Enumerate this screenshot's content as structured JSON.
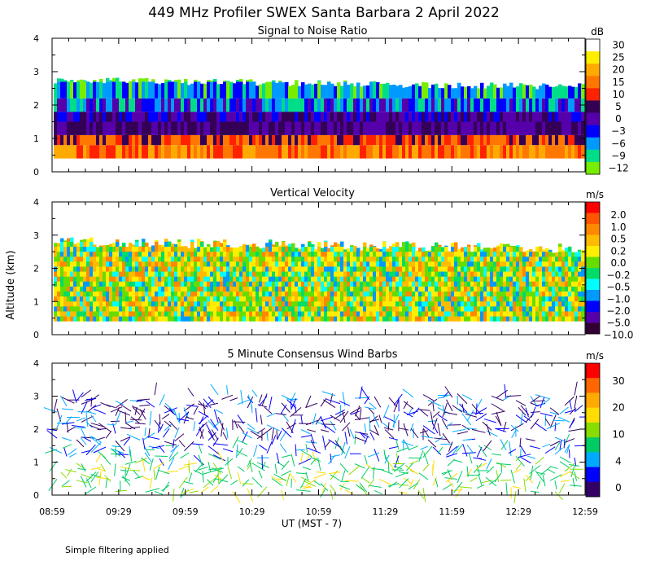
{
  "title": "449 MHz Profiler SWEX Santa Barbara  2 April 2022",
  "y_axis_label": "Altitude (km)",
  "x_axis_label": "UT  (MST - 7)",
  "footnote": "Simple filtering applied",
  "chart_data": [
    {
      "type": "heatmap",
      "title": "Signal to Noise Ratio",
      "ylim": [
        0,
        4
      ],
      "yticks": [
        "0",
        "1",
        "2",
        "3",
        "4"
      ],
      "xticks": [
        "08:59",
        "09:29",
        "09:59",
        "10:29",
        "10:59",
        "11:29",
        "11:59",
        "12:29",
        "12:59"
      ],
      "colorbar": {
        "unit": "dB",
        "levels": [
          "30",
          "25",
          "20",
          "15",
          "10",
          "5",
          "0",
          "−3",
          "−6",
          "−9",
          "−12"
        ],
        "colors": [
          "#ffffff",
          "#ffee00",
          "#ffaa00",
          "#ff7700",
          "#ff2200",
          "#330055",
          "#5500aa",
          "#0000ff",
          "#0099ff",
          "#00dd88",
          "#77ee00"
        ]
      }
    },
    {
      "type": "heatmap",
      "title": "Vertical Velocity",
      "ylim": [
        0,
        4
      ],
      "yticks": [
        "0",
        "1",
        "2",
        "3",
        "4"
      ],
      "xticks": [
        "08:59",
        "09:29",
        "09:59",
        "10:29",
        "10:59",
        "11:29",
        "11:59",
        "12:29",
        "12:59"
      ],
      "colorbar": {
        "unit": "m/s",
        "levels": [
          "2.0",
          "1.0",
          "0.5",
          "0.2",
          "0.0",
          "−0.2",
          "−0.5",
          "−1.0",
          "−2.0",
          "−5.0",
          "−10.0"
        ],
        "colors": [
          "#ff0000",
          "#ff5500",
          "#ff8800",
          "#ffbb00",
          "#ffee00",
          "#66dd00",
          "#00dd66",
          "#00ffff",
          "#0099ff",
          "#0000ff",
          "#5500aa",
          "#330033"
        ]
      }
    },
    {
      "type": "scatter",
      "title": "5 Minute Consensus Wind Barbs",
      "ylim": [
        0,
        4
      ],
      "yticks": [
        "0",
        "1",
        "2",
        "3",
        "4"
      ],
      "xticks": [
        "08:59",
        "09:29",
        "09:59",
        "10:29",
        "10:59",
        "11:29",
        "11:59",
        "12:29",
        "12:59"
      ],
      "colorbar": {
        "unit": "m/s",
        "levels": [
          "30",
          "20",
          "10",
          "4",
          "0"
        ],
        "colors": [
          "#ff0000",
          "#ff6600",
          "#ffaa00",
          "#ffdd00",
          "#88dd00",
          "#00cc66",
          "#00aaff",
          "#0000ff",
          "#330066"
        ]
      }
    }
  ]
}
